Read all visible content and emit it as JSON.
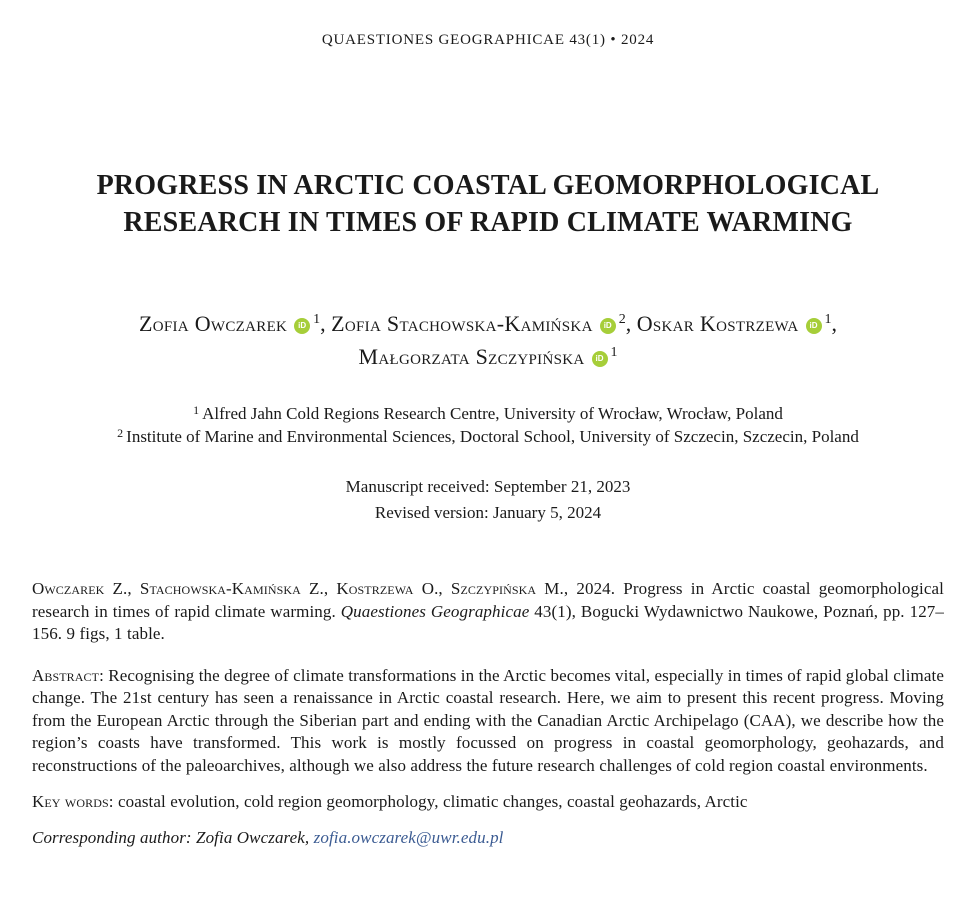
{
  "header": {
    "journal_line": "QUAESTIONES GEOGRAPHICAE 43(1) • 2024"
  },
  "title": {
    "line1": "PROGRESS IN ARCTIC COASTAL GEOMORPHOLOGICAL",
    "line2": "RESEARCH IN TIMES OF RAPID CLIMATE WARMING"
  },
  "authors": {
    "separator": ",",
    "orcid_icon_text": "iD",
    "line1": [
      {
        "name": "Zofia Owczarek",
        "sup": "1"
      },
      {
        "name": "Zofia Stachowska-Kamińska",
        "sup": "2"
      },
      {
        "name": "Oskar Kostrzewa",
        "sup": "1"
      }
    ],
    "line2": [
      {
        "name": "Małgorzata Szczypińska",
        "sup": "1"
      }
    ]
  },
  "affiliations": [
    {
      "marker": "1",
      "text": "Alfred Jahn Cold Regions Research Centre, University of Wrocław, Wrocław, Poland"
    },
    {
      "marker": "2",
      "text": "Institute of Marine and Environmental Sciences, Doctoral School, University of Szczecin, Szczecin, Poland"
    }
  ],
  "dates": {
    "received": "Manuscript received: September 21, 2023",
    "revised": "Revised version: January 5, 2024"
  },
  "citation": {
    "authors_smallcaps": "Owczarek Z., Stachowska-Kamińska Z., Kostrzewa O., Szczypińska M.,",
    "text_before_journal": " 2024. Progress in Arctic coastal geomorphological research in times of rapid climate warming. ",
    "journal_italic": "Quaestiones Geographicae",
    "text_after_journal": " 43(1), Bogucki Wydawnictwo Naukowe, Poznań, pp. 127–156. 9 figs, 1 table."
  },
  "abstract": {
    "label": "Abstract:",
    "text": " Recognising the degree of climate transformations in the Arctic becomes vital, especially in times of rapid global climate change. The 21st century has seen a renaissance in Arctic coastal research. Here, we aim to present this recent progress. Moving from the European Arctic through the Siberian part and ending with the Canadian Arctic Archipelago (CAA), we describe how the region’s coasts have transformed. This work is mostly focussed on progress in coastal geomorphology, geohazards, and reconstructions of the paleoarchives, although we also address the future research challenges of cold region coastal environments."
  },
  "keywords": {
    "label": "Key words:",
    "text": " coastal evolution, cold region geomorphology, climatic changes, coastal geohazards, Arctic"
  },
  "corresponding": {
    "label": "Corresponding author: Zofia Owczarek, ",
    "email": "zofia.owczarek@uwr.edu.pl"
  },
  "colors": {
    "orcid_green": "#A6CE39",
    "email_link": "#3B5B92",
    "text": "#1A1A1A"
  }
}
